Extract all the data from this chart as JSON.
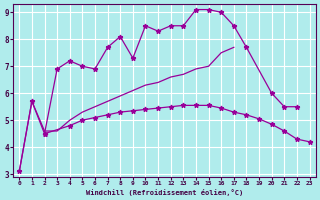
{
  "bg_color": "#b0ecec",
  "line_color": "#990099",
  "grid_color": "#ffffff",
  "xlabel": "Windchill (Refroidissement éolien,°C)",
  "curve1_x": [
    0,
    1,
    2,
    3,
    4,
    5,
    6,
    7,
    8,
    9,
    10,
    11,
    12,
    13,
    14,
    15,
    16,
    17,
    18,
    20,
    21,
    22
  ],
  "curve1_y": [
    3.1,
    5.7,
    4.5,
    6.9,
    7.2,
    7.0,
    6.9,
    7.7,
    8.1,
    7.3,
    8.5,
    8.3,
    8.5,
    8.5,
    9.1,
    9.1,
    9.0,
    8.5,
    7.7,
    6.0,
    5.5,
    5.5
  ],
  "curve2_x": [
    0,
    1,
    2,
    3,
    4,
    5,
    6,
    7,
    8,
    9,
    10,
    11,
    12,
    13,
    14,
    15,
    16,
    17
  ],
  "curve2_y": [
    3.1,
    5.7,
    4.6,
    4.6,
    5.0,
    5.3,
    5.5,
    5.7,
    5.9,
    6.1,
    6.3,
    6.4,
    6.6,
    6.7,
    6.9,
    7.0,
    7.5,
    7.7
  ],
  "curve3_x": [
    2,
    4,
    5,
    6,
    7,
    8,
    9,
    10,
    11,
    12,
    13,
    14,
    15,
    16,
    17,
    18,
    19,
    20,
    21,
    22,
    23
  ],
  "curve3_y": [
    4.5,
    4.8,
    5.0,
    5.1,
    5.2,
    5.3,
    5.35,
    5.4,
    5.45,
    5.5,
    5.55,
    5.55,
    5.55,
    5.45,
    5.3,
    5.2,
    5.05,
    4.85,
    4.6,
    4.3,
    4.2
  ],
  "ylim": [
    2.9,
    9.3
  ],
  "xlim": [
    -0.5,
    23.5
  ],
  "yticks": [
    3,
    4,
    5,
    6,
    7,
    8,
    9
  ],
  "xticks": [
    0,
    1,
    2,
    3,
    4,
    5,
    6,
    7,
    8,
    9,
    10,
    11,
    12,
    13,
    14,
    15,
    16,
    17,
    18,
    19,
    20,
    21,
    22,
    23
  ]
}
